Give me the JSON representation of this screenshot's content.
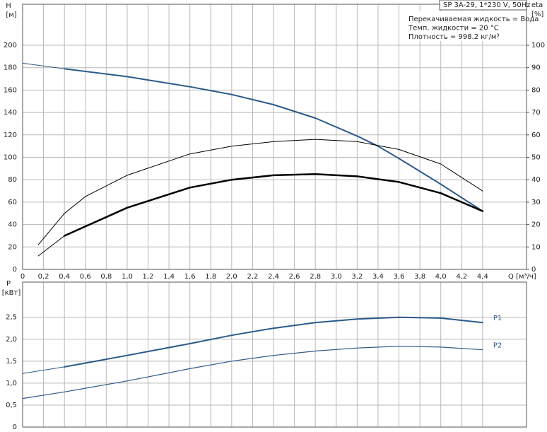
{
  "chart_data": [
    {
      "type": "line",
      "title": "SP 3A-29, 1*230 V, 50Hz",
      "annotations": [
        "Перекачиваемая жидкость = Вода",
        "Темп. жидкости = 20 °C",
        "Плотность = 998.2 кг/м³"
      ],
      "ylabel": "H",
      "yunit": "[м]",
      "y2label": "eta",
      "y2unit": "[%]",
      "xlabel": "Q [м³/ч]",
      "xlim": [
        0,
        4.82
      ],
      "xticks": [
        0,
        {
          "value": 0.2,
          "label": "0,2"
        },
        {
          "value": 0.4,
          "label": "0,4"
        },
        {
          "value": 0.6,
          "label": "0,6"
        },
        {
          "value": 0.8,
          "label": "0,8"
        },
        {
          "value": 1.0,
          "label": "1,0"
        },
        {
          "value": 1.2,
          "label": "1,2"
        },
        {
          "value": 1.4,
          "label": "1,4"
        },
        {
          "value": 1.6,
          "label": "1,6"
        },
        {
          "value": 1.8,
          "label": "1,8"
        },
        {
          "value": 2.0,
          "label": "2,0"
        },
        {
          "value": 2.2,
          "label": "2,2"
        },
        {
          "value": 2.4,
          "label": "2,4"
        },
        {
          "value": 2.6,
          "label": "2,6"
        },
        {
          "value": 2.8,
          "label": "2,8"
        },
        {
          "value": 3.0,
          "label": "3,0"
        },
        {
          "value": 3.2,
          "label": "3,2"
        },
        {
          "value": 3.4,
          "label": "3,4"
        },
        {
          "value": 3.6,
          "label": "3,6"
        },
        {
          "value": 3.8,
          "label": "3,8"
        },
        {
          "value": 4.0,
          "label": "4,0"
        },
        {
          "value": 4.2,
          "label": "4,2"
        },
        {
          "value": 4.4,
          "label": "4,4"
        }
      ],
      "ylim": [
        0,
        236.6
      ],
      "yticks": [
        0,
        20,
        40,
        60,
        80,
        100,
        120,
        140,
        160,
        180,
        200
      ],
      "y2lim": [
        0,
        118.3
      ],
      "y2ticks": [
        0,
        10,
        20,
        30,
        40,
        50,
        60,
        70,
        80,
        90,
        100
      ],
      "grid": true,
      "series": [
        {
          "color": "#2b5a8a",
          "line_width": 1,
          "x": [
            0,
            0.4
          ],
          "values": [
            184,
            179
          ]
        },
        {
          "color": "#2b5a8a",
          "line_width": 2,
          "x": [
            0.4,
            1.0,
            1.6,
            2.0,
            2.4,
            2.8,
            3.2,
            3.4,
            3.6,
            4.0,
            4.4
          ],
          "values": [
            179,
            172,
            163,
            156,
            147,
            135,
            119,
            110,
            99,
            76,
            52
          ]
        },
        {
          "color": "#000000",
          "line_width": 1,
          "axis": "y2",
          "x": [
            0.15,
            0.4,
            0.6,
            1.0,
            1.6,
            2.0,
            2.4,
            2.8,
            3.2,
            3.6,
            4.0,
            4.4
          ],
          "values": [
            11,
            25,
            32.5,
            42,
            51.5,
            55,
            57,
            58,
            57,
            53.5,
            47,
            35
          ]
        },
        {
          "color": "#000000",
          "line_width": 1,
          "axis": "y2",
          "x": [
            0.15,
            0.4
          ],
          "values": [
            6,
            15
          ]
        },
        {
          "color": "#000000",
          "line_width": 2.5,
          "axis": "y2",
          "x": [
            0.4,
            1.0,
            1.6,
            2.0,
            2.4,
            2.8,
            3.2,
            3.6,
            4.0,
            4.4
          ],
          "values": [
            15,
            27.5,
            36.5,
            40,
            42,
            42.5,
            41.5,
            39,
            34,
            26
          ]
        }
      ]
    },
    {
      "type": "line",
      "ylabel": "P",
      "yunit": "[кВт]",
      "xlim": [
        0,
        4.82
      ],
      "ylim": [
        0,
        3.3
      ],
      "yticks": [
        0,
        {
          "value": 0.5,
          "label": "0,5"
        },
        {
          "value": 1.0,
          "label": "1,0"
        },
        {
          "value": 1.5,
          "label": "1,5"
        },
        {
          "value": 2.0,
          "label": "2,0"
        },
        {
          "value": 2.5,
          "label": "2,5"
        }
      ],
      "grid": true,
      "series": [
        {
          "color": "#2b5a8a",
          "line_width": 1,
          "x": [
            0,
            0.4
          ],
          "values": [
            1.22,
            1.37
          ]
        },
        {
          "name": "P1",
          "color": "#2b5a8a",
          "line_width": 2,
          "x": [
            0.4,
            1.0,
            1.6,
            2.0,
            2.4,
            2.8,
            3.2,
            3.6,
            4.0,
            4.4
          ],
          "values": [
            1.37,
            1.63,
            1.9,
            2.09,
            2.25,
            2.38,
            2.46,
            2.5,
            2.48,
            2.38
          ]
        },
        {
          "name": "P2",
          "color": "#2b5a8a",
          "line_width": 1.2,
          "x": [
            0,
            0.4,
            1.0,
            1.6,
            2.0,
            2.4,
            2.8,
            3.2,
            3.6,
            4.0,
            4.4
          ],
          "values": [
            0.65,
            0.8,
            1.05,
            1.33,
            1.5,
            1.63,
            1.73,
            1.8,
            1.84,
            1.82,
            1.76
          ]
        }
      ]
    }
  ]
}
